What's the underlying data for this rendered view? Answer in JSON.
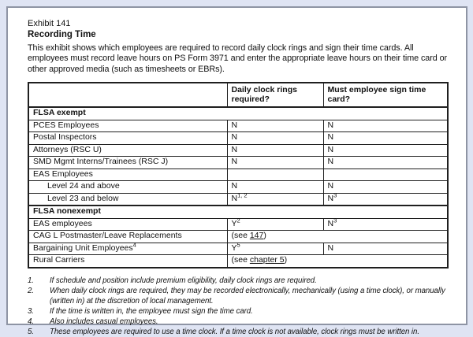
{
  "document": {
    "exhibit_label": "Exhibit 141",
    "title": "Recording Time",
    "intro": "This exhibit shows which employees are required to record daily clock rings and sign their time cards. All employees must record leave hours on PS Form 3971 and enter the appropriate leave hours on their time card or other approved media (such as timesheets or EBRs)."
  },
  "table": {
    "columns": [
      "",
      "Daily clock rings required?",
      "Must employee sign time card?"
    ],
    "rows": [
      {
        "type": "section",
        "label": "FLSA exempt"
      },
      {
        "type": "data",
        "label": "PCES Employees",
        "clock_rings": "N",
        "sign_card": "N"
      },
      {
        "type": "data",
        "label": "Postal Inspectors",
        "clock_rings": "N",
        "sign_card": "N"
      },
      {
        "type": "data",
        "label": "Attorneys (RSC U)",
        "clock_rings": "N",
        "sign_card": "N"
      },
      {
        "type": "data",
        "label": "SMD Mgmt Interns/Trainees (RSC J)",
        "clock_rings": "N",
        "sign_card": "N"
      },
      {
        "type": "data",
        "label": "EAS Employees",
        "clock_rings": "",
        "sign_card": ""
      },
      {
        "type": "data",
        "label": "Level 24 and above",
        "clock_rings": "N",
        "sign_card": "N"
      },
      {
        "type": "data",
        "label": "Level 23 and below",
        "clock_rings": "N",
        "clock_rings_sup": "1, 2",
        "sign_card": "N",
        "sign_card_sup": "3"
      },
      {
        "type": "section",
        "label": "FLSA nonexempt"
      },
      {
        "type": "data",
        "label": "EAS employees",
        "clock_rings": "Y",
        "clock_rings_sup": "2",
        "sign_card": "N",
        "sign_card_sup": "3"
      },
      {
        "type": "data",
        "label": "CAG L Postmaster/Leave Replacements",
        "span_pre": "(see ",
        "span_link": "147",
        "span_post": ")"
      },
      {
        "type": "data",
        "label": "Bargaining Unit Employees",
        "label_sup": "4",
        "clock_rings": "Y",
        "clock_rings_sup": "5",
        "sign_card": "N"
      },
      {
        "type": "data",
        "label": "Rural Carriers",
        "span_pre": "(see ",
        "span_link": "chapter 5",
        "span_post": ")"
      }
    ]
  },
  "footnotes": [
    {
      "num": "1.",
      "text": "If schedule and position include premium eligibility, daily clock rings are required."
    },
    {
      "num": "2.",
      "text": "When daily clock rings are required, they may be recorded electronically, mechanically (using a time clock), or manually (written in) at the discretion of local management."
    },
    {
      "num": "3.",
      "text": "If the time is written in, the employee must sign the time card."
    },
    {
      "num": "4.",
      "text": "Also includes casual employees."
    },
    {
      "num": "5.",
      "text": "These employees are required to use a time clock. If a time clock is not available, clock rings must be written in."
    }
  ],
  "colors": {
    "page_margin": "#dfe4f3",
    "sheet_border": "#8e94a4",
    "table_line": "#1f1f1f",
    "text": "#111111",
    "link": "#111111"
  }
}
